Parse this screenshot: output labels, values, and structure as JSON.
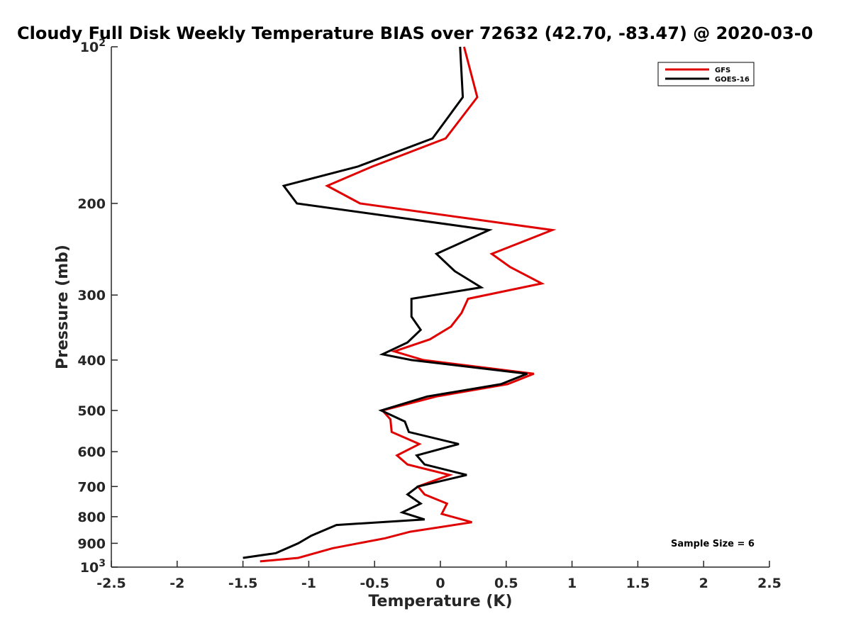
{
  "chart_data": {
    "type": "line",
    "title": "Cloudy Full Disk Weekly Temperature BIAS over 72632 (42.70, -83.47) @ 2020-03-0",
    "xlabel": "Temperature (K)",
    "ylabel": "Pressure (mb)",
    "xlim": [
      -2.5,
      2.5
    ],
    "ylim": [
      100,
      1000
    ],
    "yscale": "log",
    "y_reversed": true,
    "grid": false,
    "legend_position": "top-right",
    "x_ticks": [
      "-2.5",
      "-2",
      "-1.5",
      "-1",
      "-0.5",
      "0",
      "0.5",
      "1",
      "1.5",
      "2",
      "2.5"
    ],
    "y_ticks": [
      {
        "value": 100,
        "base": "10",
        "exp": "2"
      },
      {
        "value": 200,
        "label": "200"
      },
      {
        "value": 300,
        "label": "300"
      },
      {
        "value": 400,
        "label": "400"
      },
      {
        "value": 500,
        "label": "500"
      },
      {
        "value": 600,
        "label": "600"
      },
      {
        "value": 700,
        "label": "700"
      },
      {
        "value": 800,
        "label": "800"
      },
      {
        "value": 900,
        "label": "900"
      },
      {
        "value": 1000,
        "base": "10",
        "exp": "3"
      }
    ],
    "annotation": "Sample Size = 6",
    "series": [
      {
        "name": "GFS",
        "color": "#e00000",
        "points": [
          [
            0.18,
            100
          ],
          [
            0.28,
            125
          ],
          [
            0.04,
            150
          ],
          [
            -0.52,
            170
          ],
          [
            -0.86,
            185
          ],
          [
            -0.61,
            200
          ],
          [
            0.85,
            225
          ],
          [
            0.39,
            250
          ],
          [
            0.53,
            265
          ],
          [
            0.77,
            285
          ],
          [
            0.21,
            305
          ],
          [
            0.16,
            325
          ],
          [
            0.08,
            345
          ],
          [
            -0.08,
            365
          ],
          [
            -0.35,
            385
          ],
          [
            -0.13,
            400
          ],
          [
            0.71,
            425
          ],
          [
            0.51,
            445
          ],
          [
            -0.03,
            470
          ],
          [
            -0.44,
            500
          ],
          [
            -0.38,
            520
          ],
          [
            -0.37,
            550
          ],
          [
            -0.16,
            580
          ],
          [
            -0.33,
            610
          ],
          [
            -0.25,
            635
          ],
          [
            0.07,
            665
          ],
          [
            -0.17,
            700
          ],
          [
            -0.12,
            725
          ],
          [
            0.05,
            755
          ],
          [
            0.01,
            790
          ],
          [
            0.24,
            820
          ],
          [
            -0.23,
            855
          ],
          [
            -0.42,
            880
          ],
          [
            -0.82,
            920
          ],
          [
            -1.08,
            960
          ],
          [
            -1.37,
            975
          ]
        ]
      },
      {
        "name": "GOES-16",
        "color": "#000000",
        "points": [
          [
            0.15,
            100
          ],
          [
            0.17,
            125
          ],
          [
            -0.06,
            150
          ],
          [
            -0.63,
            170
          ],
          [
            -1.19,
            185
          ],
          [
            -1.09,
            200
          ],
          [
            0.37,
            225
          ],
          [
            -0.03,
            250
          ],
          [
            0.11,
            270
          ],
          [
            0.31,
            290
          ],
          [
            -0.22,
            305
          ],
          [
            -0.22,
            330
          ],
          [
            -0.15,
            350
          ],
          [
            -0.25,
            370
          ],
          [
            -0.44,
            390
          ],
          [
            -0.22,
            400
          ],
          [
            0.66,
            425
          ],
          [
            0.46,
            445
          ],
          [
            -0.1,
            470
          ],
          [
            -0.45,
            500
          ],
          [
            -0.27,
            525
          ],
          [
            -0.24,
            550
          ],
          [
            0.14,
            580
          ],
          [
            -0.18,
            610
          ],
          [
            -0.12,
            635
          ],
          [
            0.2,
            665
          ],
          [
            -0.17,
            700
          ],
          [
            -0.25,
            725
          ],
          [
            -0.15,
            755
          ],
          [
            -0.29,
            785
          ],
          [
            -0.12,
            810
          ],
          [
            -0.79,
            830
          ],
          [
            -0.98,
            870
          ],
          [
            -1.08,
            900
          ],
          [
            -1.25,
            940
          ],
          [
            -1.5,
            960
          ]
        ]
      }
    ]
  }
}
